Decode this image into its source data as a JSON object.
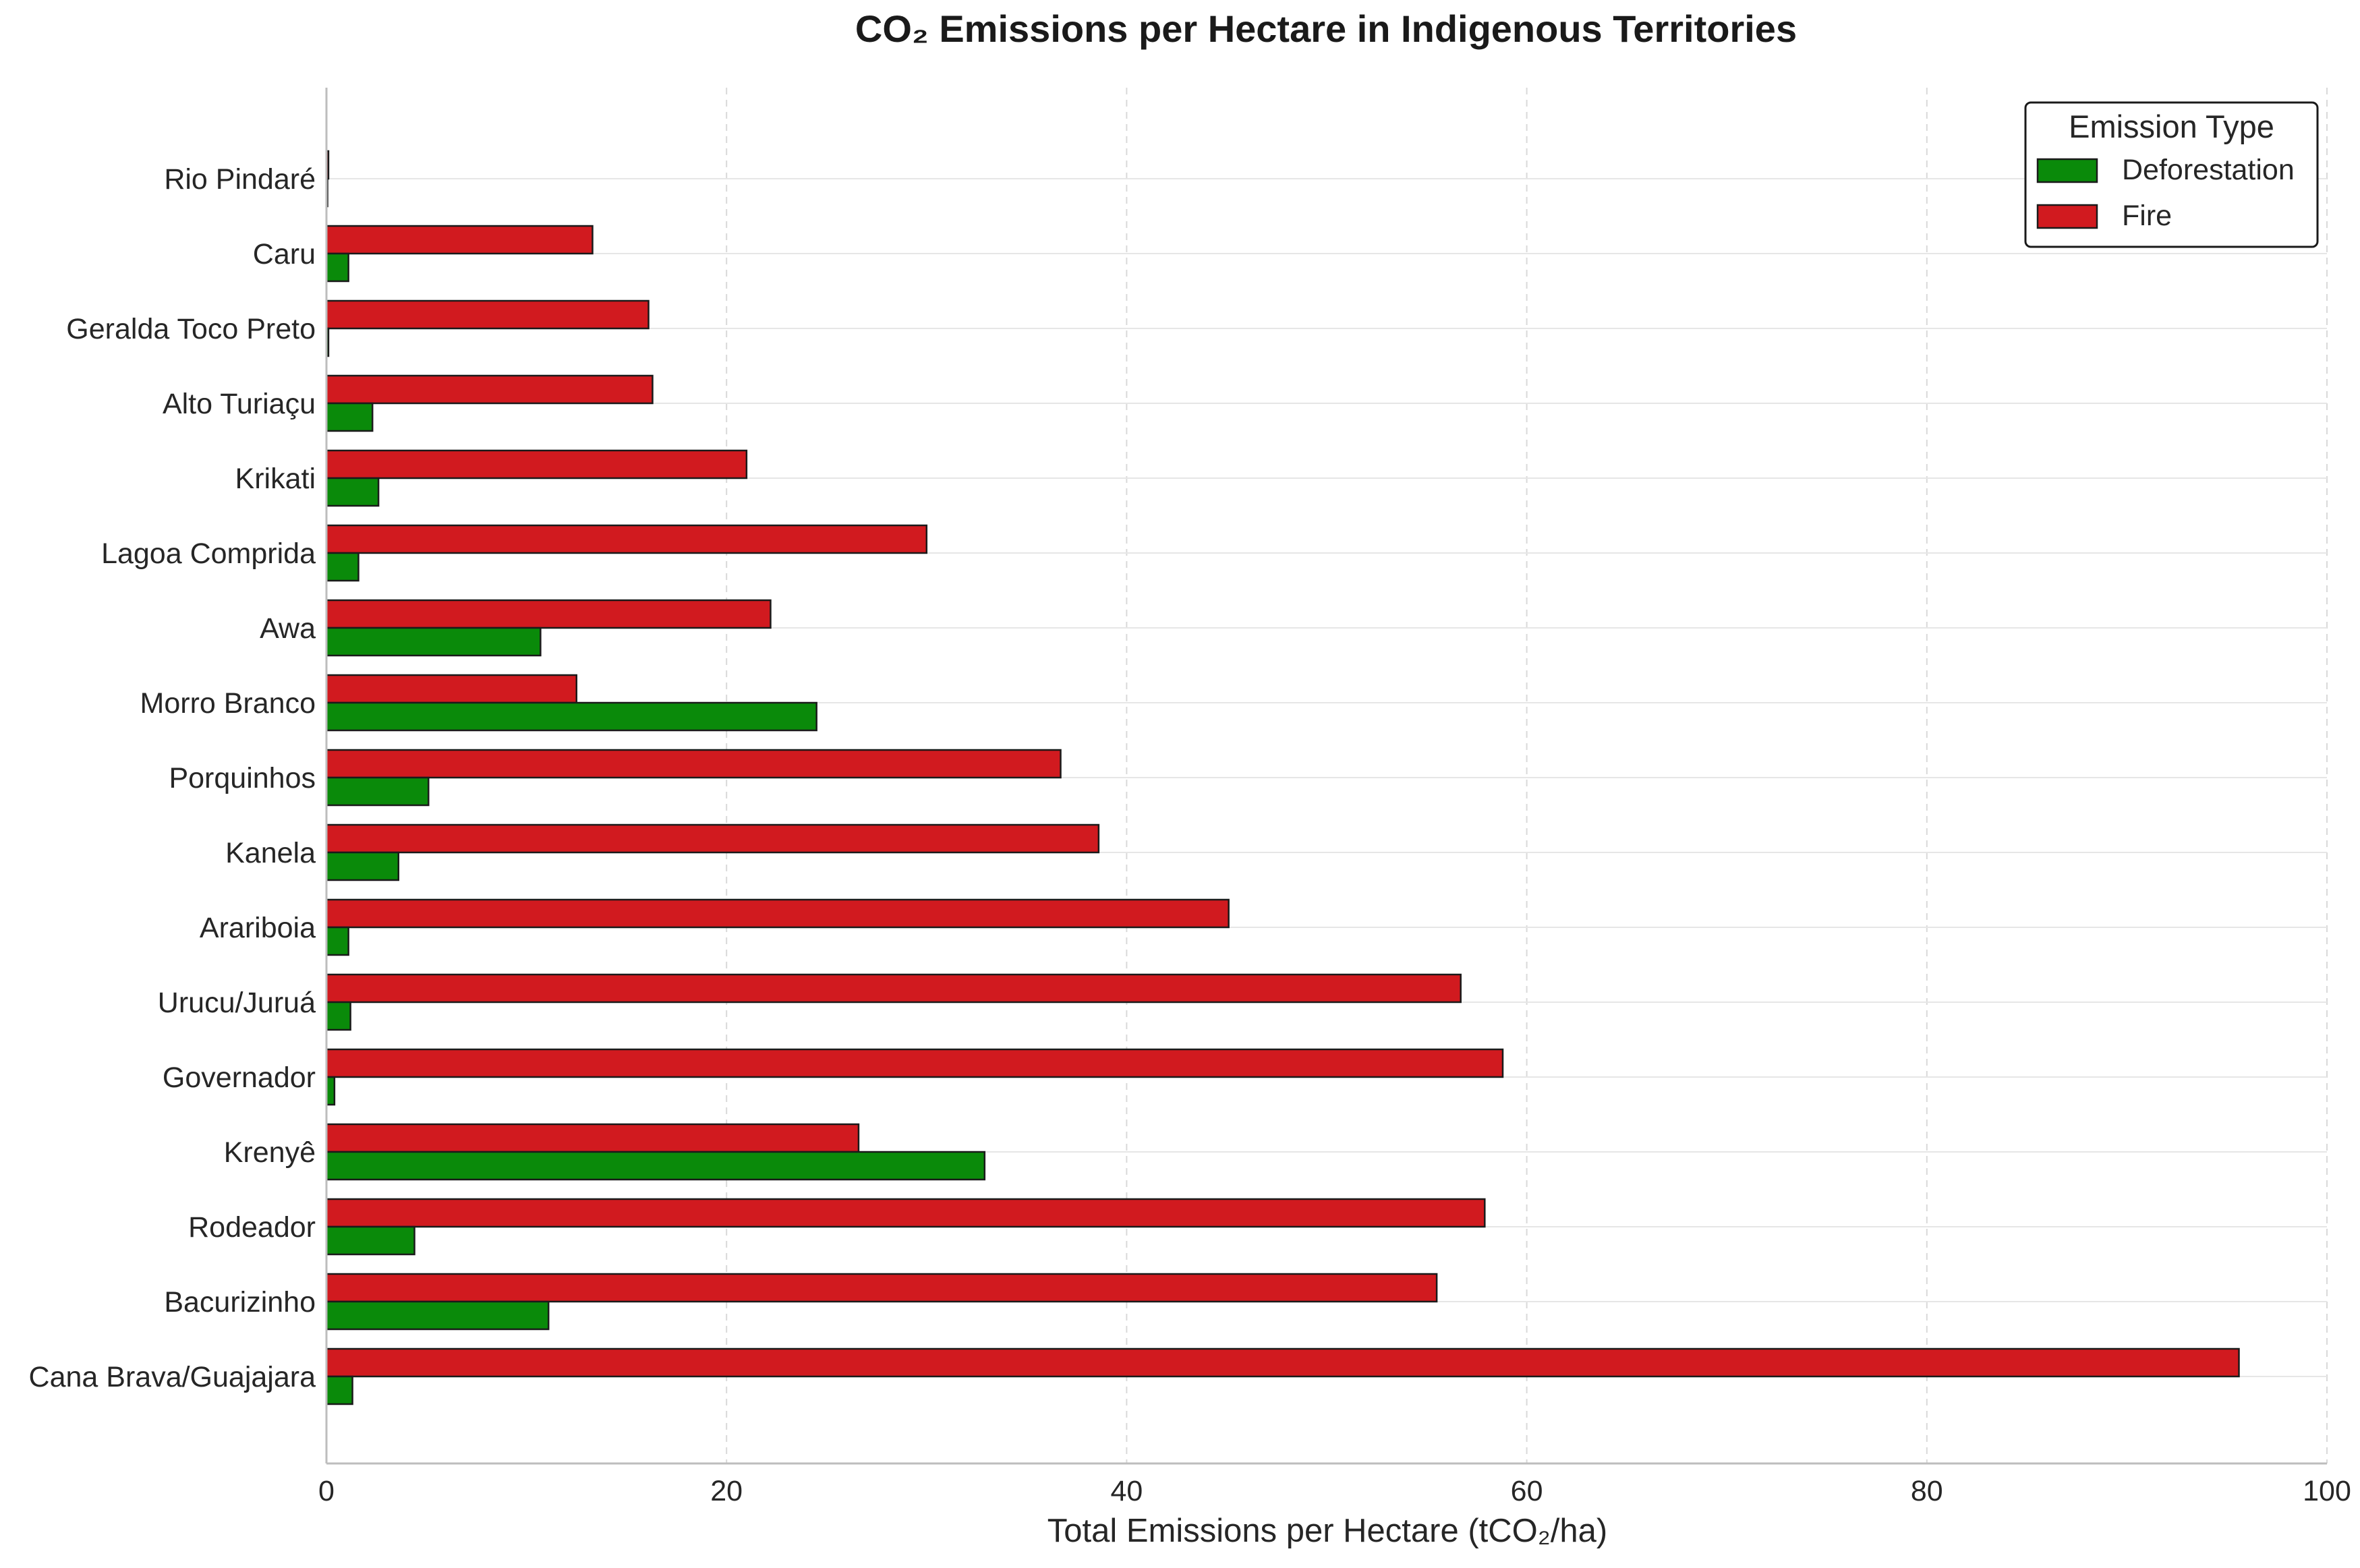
{
  "chart_data": {
    "type": "bar",
    "orientation": "horizontal",
    "title": "CO₂ Emissions per Hectare in Indigenous Territories",
    "xlabel": "Total Emissions per Hectare (tCO₂/ha)",
    "ylabel": "",
    "xlim": [
      0,
      100
    ],
    "xticks": [
      0,
      20,
      40,
      60,
      80,
      100
    ],
    "grid": true,
    "legend": {
      "title": "Emission Type",
      "placement": "top-right"
    },
    "categories": [
      "Rio Pindaré",
      "Caru",
      "Geralda Toco Preto",
      "Alto Turiaçu",
      "Krikati",
      "Lagoa Comprida",
      "Awa",
      "Morro Branco",
      "Porquinhos",
      "Kanela",
      "Arariboia",
      "Urucu/Juruá",
      "Governador",
      "Krenyê",
      "Rodeador",
      "Bacurizinho",
      "Cana Brava/Guajajara"
    ],
    "series": [
      {
        "name": "Deforestation",
        "color": "#0a8a0a",
        "values": [
          0,
          1.1,
          0.1,
          2.3,
          2.6,
          1.6,
          10.7,
          24.5,
          5.1,
          3.6,
          1.1,
          1.2,
          0.4,
          32.9,
          4.4,
          11.1,
          1.3
        ]
      },
      {
        "name": "Fire",
        "color": "#d11a1f",
        "values": [
          0.1,
          13.3,
          16.1,
          16.3,
          21.0,
          30.0,
          22.2,
          12.5,
          36.7,
          38.6,
          45.1,
          56.7,
          58.8,
          26.6,
          57.9,
          55.5,
          95.6
        ]
      }
    ]
  }
}
